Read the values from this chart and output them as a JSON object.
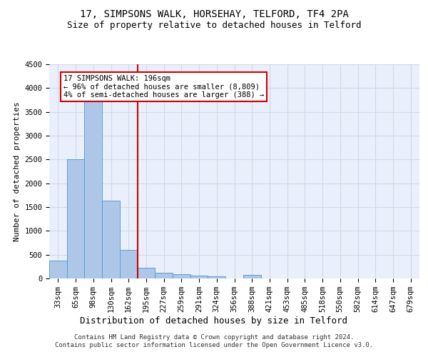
{
  "title1": "17, SIMPSONS WALK, HORSEHAY, TELFORD, TF4 2PA",
  "title2": "Size of property relative to detached houses in Telford",
  "xlabel": "Distribution of detached houses by size in Telford",
  "ylabel": "Number of detached properties",
  "categories": [
    "33sqm",
    "65sqm",
    "98sqm",
    "130sqm",
    "162sqm",
    "195sqm",
    "227sqm",
    "259sqm",
    "291sqm",
    "324sqm",
    "356sqm",
    "388sqm",
    "421sqm",
    "453sqm",
    "485sqm",
    "518sqm",
    "550sqm",
    "582sqm",
    "614sqm",
    "647sqm",
    "679sqm"
  ],
  "values": [
    370,
    2500,
    3750,
    1640,
    600,
    230,
    115,
    90,
    60,
    40,
    0,
    70,
    0,
    0,
    0,
    0,
    0,
    0,
    0,
    0,
    0
  ],
  "bar_color": "#aec6e8",
  "bar_edge_color": "#5a9fd4",
  "property_line_bin_index": 5,
  "annotation_text": "17 SIMPSONS WALK: 196sqm\n← 96% of detached houses are smaller (8,809)\n4% of semi-detached houses are larger (388) →",
  "annotation_box_color": "#cc0000",
  "ylim": [
    0,
    4500
  ],
  "yticks": [
    0,
    500,
    1000,
    1500,
    2000,
    2500,
    3000,
    3500,
    4000,
    4500
  ],
  "grid_color": "#d0d8e8",
  "bg_color": "#eaf0fb",
  "footer": "Contains HM Land Registry data © Crown copyright and database right 2024.\nContains public sector information licensed under the Open Government Licence v3.0.",
  "title1_fontsize": 10,
  "title2_fontsize": 9,
  "xlabel_fontsize": 9,
  "ylabel_fontsize": 8,
  "tick_fontsize": 7.5,
  "footer_fontsize": 6.5,
  "annot_fontsize": 7.5
}
